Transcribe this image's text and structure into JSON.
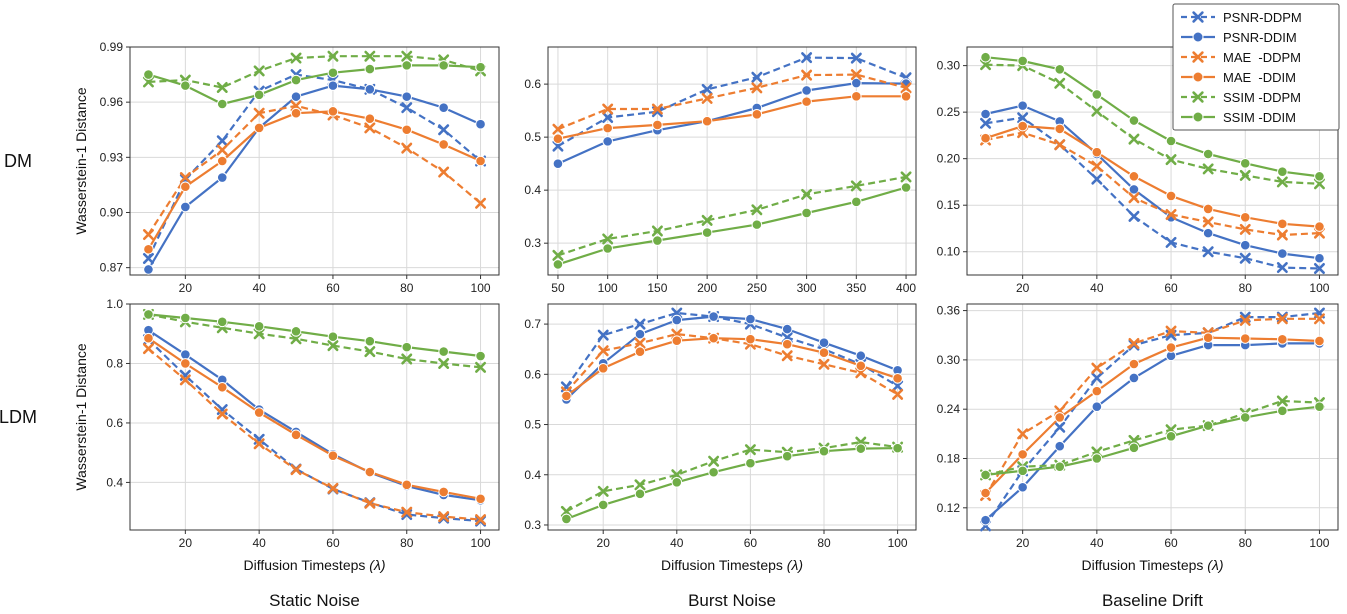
{
  "figure": {
    "rows": [
      "DM",
      "LDM"
    ],
    "columns": [
      "Static Noise",
      "Burst Noise",
      "Baseline Drift"
    ],
    "ylabel": "Wasserstein-1 Distance",
    "xlabel_text": "Diffusion Timesteps ",
    "xlabel_symbol": "(λ)"
  },
  "legend": [
    {
      "label": "PSNR-DDPM",
      "color": "#4472C4",
      "marker": "x",
      "dash": true
    },
    {
      "label": "PSNR-DDIM",
      "color": "#4472C4",
      "marker": "o",
      "dash": false
    },
    {
      "label": "MAE  -DDPM",
      "color": "#ED7D31",
      "marker": "x",
      "dash": true
    },
    {
      "label": "MAE  -DDIM",
      "color": "#ED7D31",
      "marker": "o",
      "dash": false
    },
    {
      "label": "SSIM -DDPM",
      "color": "#70AD47",
      "marker": "x",
      "dash": true
    },
    {
      "label": "SSIM -DDIM",
      "color": "#70AD47",
      "marker": "o",
      "dash": false
    }
  ],
  "chart_data": [
    {
      "type": "line",
      "row": "DM",
      "column": "Static Noise",
      "x": [
        10,
        20,
        30,
        40,
        50,
        60,
        70,
        80,
        90,
        100
      ],
      "xlim": [
        5,
        105
      ],
      "xticks": [
        20,
        40,
        60,
        80,
        100
      ],
      "xticklabels": [
        "20",
        "40",
        "60",
        "80",
        "100"
      ],
      "ylim": [
        0.866,
        0.99
      ],
      "yticks": [
        0.87,
        0.9,
        0.93,
        0.96,
        0.99
      ],
      "yticklabels": [
        "0.87",
        "0.90",
        "0.93",
        "0.96",
        "0.99"
      ],
      "grid": true,
      "series": [
        {
          "name": "PSNR-DDPM",
          "values": [
            0.875,
            0.918,
            0.939,
            0.966,
            0.975,
            0.972,
            0.967,
            0.957,
            0.945,
            0.928
          ]
        },
        {
          "name": "PSNR-DDIM",
          "values": [
            0.869,
            0.903,
            0.919,
            0.946,
            0.963,
            0.969,
            0.967,
            0.963,
            0.957,
            0.948
          ]
        },
        {
          "name": "MAE  -DDPM",
          "values": [
            0.888,
            0.919,
            0.934,
            0.954,
            0.958,
            0.953,
            0.946,
            0.935,
            0.922,
            0.905
          ]
        },
        {
          "name": "MAE  -DDIM",
          "values": [
            0.88,
            0.914,
            0.928,
            0.946,
            0.954,
            0.955,
            0.951,
            0.945,
            0.937,
            0.928
          ]
        },
        {
          "name": "SSIM -DDPM",
          "values": [
            0.971,
            0.972,
            0.968,
            0.977,
            0.984,
            0.985,
            0.985,
            0.985,
            0.983,
            0.977
          ]
        },
        {
          "name": "SSIM -DDIM",
          "values": [
            0.975,
            0.969,
            0.959,
            0.964,
            0.972,
            0.976,
            0.978,
            0.98,
            0.98,
            0.979
          ]
        }
      ]
    },
    {
      "type": "line",
      "row": "DM",
      "column": "Burst Noise",
      "x": [
        50,
        100,
        150,
        200,
        250,
        300,
        350,
        400
      ],
      "xlim": [
        40,
        410
      ],
      "xticks": [
        50,
        100,
        150,
        200,
        250,
        300,
        350,
        400
      ],
      "xticklabels": [
        "50",
        "100",
        "150",
        "200",
        "250",
        "300",
        "350",
        "400"
      ],
      "ylim": [
        0.24,
        0.67
      ],
      "yticks": [
        0.3,
        0.4,
        0.5,
        0.6
      ],
      "yticklabels": [
        "0.3",
        "0.4",
        "0.5",
        "0.6"
      ],
      "grid": true,
      "series": [
        {
          "name": "PSNR-DDPM",
          "values": [
            0.483,
            0.537,
            0.548,
            0.59,
            0.613,
            0.65,
            0.649,
            0.612
          ]
        },
        {
          "name": "PSNR-DDIM",
          "values": [
            0.45,
            0.492,
            0.513,
            0.53,
            0.555,
            0.588,
            0.602,
            0.601
          ]
        },
        {
          "name": "MAE  -DDPM",
          "values": [
            0.515,
            0.553,
            0.553,
            0.573,
            0.593,
            0.617,
            0.618,
            0.593
          ]
        },
        {
          "name": "MAE  -DDIM",
          "values": [
            0.497,
            0.517,
            0.523,
            0.53,
            0.543,
            0.567,
            0.577,
            0.577
          ]
        },
        {
          "name": "SSIM -DDPM",
          "values": [
            0.277,
            0.308,
            0.323,
            0.343,
            0.363,
            0.392,
            0.408,
            0.425
          ]
        },
        {
          "name": "SSIM -DDIM",
          "values": [
            0.26,
            0.29,
            0.305,
            0.32,
            0.335,
            0.357,
            0.378,
            0.405
          ]
        }
      ]
    },
    {
      "type": "line",
      "row": "DM",
      "column": "Baseline Drift",
      "x": [
        10,
        20,
        30,
        40,
        50,
        60,
        70,
        80,
        90,
        100
      ],
      "xlim": [
        5,
        105
      ],
      "xticks": [
        20,
        40,
        60,
        80,
        100
      ],
      "xticklabels": [
        "20",
        "40",
        "60",
        "80",
        "100"
      ],
      "ylim": [
        0.075,
        0.32
      ],
      "yticks": [
        0.1,
        0.15,
        0.2,
        0.25,
        0.3
      ],
      "yticklabels": [
        "0.10",
        "0.15",
        "0.20",
        "0.25",
        "0.30"
      ],
      "grid": true,
      "series": [
        {
          "name": "PSNR-DDPM",
          "values": [
            0.238,
            0.244,
            0.215,
            0.178,
            0.138,
            0.11,
            0.1,
            0.093,
            0.083,
            0.082
          ]
        },
        {
          "name": "PSNR-DDIM",
          "values": [
            0.248,
            0.257,
            0.24,
            0.205,
            0.167,
            0.137,
            0.12,
            0.107,
            0.098,
            0.093
          ]
        },
        {
          "name": "MAE  -DDPM",
          "values": [
            0.22,
            0.228,
            0.215,
            0.192,
            0.158,
            0.14,
            0.132,
            0.124,
            0.118,
            0.12
          ]
        },
        {
          "name": "MAE  -DDIM",
          "values": [
            0.222,
            0.235,
            0.232,
            0.207,
            0.181,
            0.16,
            0.146,
            0.137,
            0.13,
            0.127
          ]
        },
        {
          "name": "SSIM -DDPM",
          "values": [
            0.301,
            0.3,
            0.281,
            0.251,
            0.221,
            0.199,
            0.189,
            0.182,
            0.175,
            0.173
          ]
        },
        {
          "name": "SSIM -DDIM",
          "values": [
            0.309,
            0.305,
            0.296,
            0.269,
            0.241,
            0.219,
            0.205,
            0.195,
            0.186,
            0.181
          ]
        }
      ]
    },
    {
      "type": "line",
      "row": "LDM",
      "column": "Static Noise",
      "x": [
        10,
        20,
        30,
        40,
        50,
        60,
        70,
        80,
        90,
        100
      ],
      "xlim": [
        5,
        105
      ],
      "xticks": [
        20,
        40,
        60,
        80,
        100
      ],
      "xticklabels": [
        "20",
        "40",
        "60",
        "80",
        "100"
      ],
      "ylim": [
        0.24,
        1.0
      ],
      "yticks": [
        0.4,
        0.6,
        0.8,
        1.0
      ],
      "yticklabels": [
        "0.4",
        "0.6",
        "0.8",
        "1.0"
      ],
      "grid": true,
      "series": [
        {
          "name": "PSNR-DDPM",
          "values": [
            0.88,
            0.76,
            0.645,
            0.545,
            0.445,
            0.378,
            0.332,
            0.292,
            0.28,
            0.27
          ]
        },
        {
          "name": "PSNR-DDIM",
          "values": [
            0.912,
            0.83,
            0.745,
            0.645,
            0.57,
            0.495,
            0.433,
            0.388,
            0.358,
            0.34
          ]
        },
        {
          "name": "MAE  -DDPM",
          "values": [
            0.85,
            0.745,
            0.63,
            0.53,
            0.443,
            0.38,
            0.33,
            0.3,
            0.285,
            0.275
          ]
        },
        {
          "name": "MAE  -DDIM",
          "values": [
            0.885,
            0.8,
            0.72,
            0.635,
            0.56,
            0.49,
            0.435,
            0.392,
            0.368,
            0.345
          ]
        },
        {
          "name": "SSIM -DDPM",
          "values": [
            0.965,
            0.94,
            0.92,
            0.9,
            0.883,
            0.86,
            0.84,
            0.815,
            0.8,
            0.787
          ]
        },
        {
          "name": "SSIM -DDIM",
          "values": [
            0.965,
            0.953,
            0.94,
            0.925,
            0.908,
            0.89,
            0.875,
            0.855,
            0.84,
            0.825
          ]
        }
      ]
    },
    {
      "type": "line",
      "row": "LDM",
      "column": "Burst Noise",
      "x": [
        10,
        20,
        30,
        40,
        50,
        60,
        70,
        80,
        90,
        100
      ],
      "xlim": [
        5,
        105
      ],
      "xticks": [
        20,
        40,
        60,
        80,
        100
      ],
      "xticklabels": [
        "20",
        "40",
        "60",
        "80",
        "100"
      ],
      "ylim": [
        0.29,
        0.74
      ],
      "yticks": [
        0.3,
        0.4,
        0.5,
        0.6,
        0.7
      ],
      "yticklabels": [
        "0.3",
        "0.4",
        "0.5",
        "0.6",
        "0.7"
      ],
      "grid": true,
      "series": [
        {
          "name": "PSNR-DDPM",
          "values": [
            0.575,
            0.678,
            0.7,
            0.722,
            0.715,
            0.7,
            0.673,
            0.65,
            0.62,
            0.577
          ]
        },
        {
          "name": "PSNR-DDIM",
          "values": [
            0.55,
            0.622,
            0.68,
            0.708,
            0.715,
            0.71,
            0.69,
            0.663,
            0.637,
            0.608
          ]
        },
        {
          "name": "MAE  -DDPM",
          "values": [
            0.565,
            0.647,
            0.662,
            0.68,
            0.672,
            0.66,
            0.637,
            0.62,
            0.603,
            0.56
          ]
        },
        {
          "name": "MAE  -DDIM",
          "values": [
            0.557,
            0.612,
            0.645,
            0.667,
            0.672,
            0.67,
            0.66,
            0.643,
            0.617,
            0.592
          ]
        },
        {
          "name": "SSIM -DDPM",
          "values": [
            0.327,
            0.367,
            0.38,
            0.4,
            0.427,
            0.45,
            0.445,
            0.453,
            0.465,
            0.455
          ]
        },
        {
          "name": "SSIM -DDIM",
          "values": [
            0.312,
            0.34,
            0.362,
            0.385,
            0.405,
            0.423,
            0.437,
            0.447,
            0.452,
            0.453
          ]
        }
      ]
    },
    {
      "type": "line",
      "row": "LDM",
      "column": "Baseline Drift",
      "x": [
        10,
        20,
        30,
        40,
        50,
        60,
        70,
        80,
        90,
        100
      ],
      "xlim": [
        5,
        105
      ],
      "xticks": [
        20,
        40,
        60,
        80,
        100
      ],
      "xticklabels": [
        "20",
        "40",
        "60",
        "80",
        "100"
      ],
      "ylim": [
        0.093,
        0.368
      ],
      "yticks": [
        0.12,
        0.18,
        0.24,
        0.3,
        0.36
      ],
      "yticklabels": [
        "0.12",
        "0.18",
        "0.24",
        "0.30",
        "0.36"
      ],
      "grid": true,
      "series": [
        {
          "name": "PSNR-DDPM",
          "values": [
            0.098,
            0.165,
            0.218,
            0.278,
            0.318,
            0.33,
            0.333,
            0.352,
            0.352,
            0.357
          ]
        },
        {
          "name": "PSNR-DDIM",
          "values": [
            0.105,
            0.145,
            0.195,
            0.243,
            0.278,
            0.305,
            0.318,
            0.318,
            0.32,
            0.32
          ]
        },
        {
          "name": "MAE  -DDPM",
          "values": [
            0.135,
            0.21,
            0.238,
            0.29,
            0.32,
            0.335,
            0.333,
            0.348,
            0.35,
            0.35
          ]
        },
        {
          "name": "MAE  -DDIM",
          "values": [
            0.138,
            0.185,
            0.23,
            0.262,
            0.295,
            0.315,
            0.327,
            0.326,
            0.325,
            0.323
          ]
        },
        {
          "name": "SSIM -DDPM",
          "values": [
            0.16,
            0.17,
            0.172,
            0.188,
            0.202,
            0.215,
            0.22,
            0.235,
            0.25,
            0.248
          ]
        },
        {
          "name": "SSIM -DDIM",
          "values": [
            0.16,
            0.165,
            0.17,
            0.18,
            0.193,
            0.207,
            0.22,
            0.23,
            0.238,
            0.243
          ]
        }
      ]
    }
  ]
}
